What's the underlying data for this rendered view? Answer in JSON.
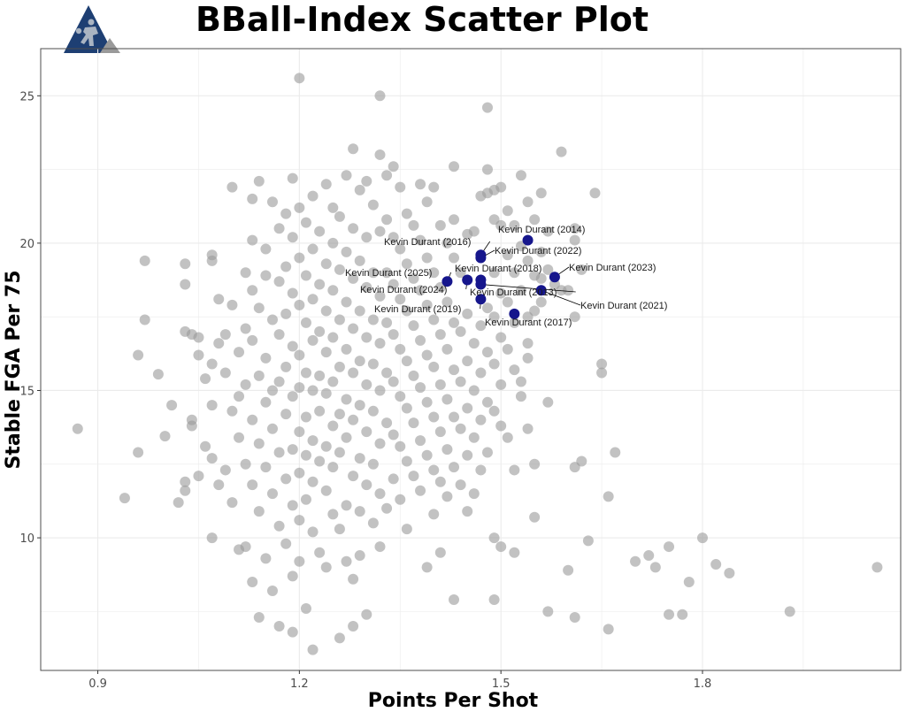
{
  "chart_data": {
    "type": "scatter",
    "title": "BBall-Index Scatter Plot",
    "xlabel": "Points Per Shot",
    "ylabel": "Stable FGA Per 75",
    "xlim": [
      0.815,
      2.095
    ],
    "ylim": [
      5.5,
      26.6
    ],
    "xticks": [
      0.9,
      1.2,
      1.5,
      1.8
    ],
    "yticks": [
      10,
      15,
      20,
      25
    ],
    "grid": true,
    "legend": "none",
    "colors": {
      "background": "#999999",
      "highlight": "#16168c",
      "grid": "#ebebeb",
      "panel_border": "#4d4d4d",
      "logo_dark": "#1e3f73",
      "logo_grey": "#9a9a9a"
    },
    "logo": {
      "name": "bball-index-logo"
    },
    "highlight": [
      {
        "label": "Kevin Durant (2014)",
        "x": 1.54,
        "y": 20.1
      },
      {
        "label": "Kevin Durant (2016)",
        "x": 1.47,
        "y": 19.6
      },
      {
        "label": "Kevin Durant (2022)",
        "x": 1.47,
        "y": 19.5
      },
      {
        "label": "Kevin Durant (2023)",
        "x": 1.58,
        "y": 18.85
      },
      {
        "label": "Kevin Durant (2018)",
        "x": 1.47,
        "y": 18.75
      },
      {
        "label": "Kevin Durant (2025)",
        "x": 1.42,
        "y": 18.7
      },
      {
        "label": "Kevin Durant (2024)",
        "x": 1.45,
        "y": 18.75
      },
      {
        "label": "Kevin Durant (2013)",
        "x": 1.47,
        "y": 18.6
      },
      {
        "label": "Kevin Durant (2021)",
        "x": 1.56,
        "y": 18.4
      },
      {
        "label": "Kevin Durant (2019)",
        "x": 1.47,
        "y": 18.1
      },
      {
        "label": "Kevin Durant (2017)",
        "x": 1.52,
        "y": 17.6
      }
    ],
    "background_points": [
      [
        0.87,
        13.7
      ],
      [
        0.94,
        11.35
      ],
      [
        0.96,
        16.2
      ],
      [
        0.96,
        12.9
      ],
      [
        0.97,
        19.4
      ],
      [
        0.97,
        17.4
      ],
      [
        0.99,
        15.55
      ],
      [
        1.0,
        13.45
      ],
      [
        1.01,
        14.5
      ],
      [
        1.02,
        11.2
      ],
      [
        1.03,
        19.3
      ],
      [
        1.03,
        18.6
      ],
      [
        1.03,
        17.0
      ],
      [
        1.03,
        11.6
      ],
      [
        1.03,
        11.9
      ],
      [
        1.04,
        16.9
      ],
      [
        1.04,
        14.0
      ],
      [
        1.04,
        13.8
      ],
      [
        1.05,
        16.8
      ],
      [
        1.05,
        16.2
      ],
      [
        1.05,
        12.1
      ],
      [
        1.06,
        15.4
      ],
      [
        1.06,
        13.1
      ],
      [
        1.07,
        19.6
      ],
      [
        1.07,
        19.4
      ],
      [
        1.07,
        15.9
      ],
      [
        1.07,
        14.5
      ],
      [
        1.07,
        12.7
      ],
      [
        1.07,
        10.0
      ],
      [
        1.08,
        18.1
      ],
      [
        1.08,
        16.6
      ],
      [
        1.08,
        11.8
      ],
      [
        1.09,
        16.9
      ],
      [
        1.09,
        15.6
      ],
      [
        1.09,
        12.3
      ],
      [
        1.1,
        21.9
      ],
      [
        1.1,
        17.9
      ],
      [
        1.1,
        14.3
      ],
      [
        1.1,
        11.2
      ],
      [
        1.11,
        16.3
      ],
      [
        1.11,
        14.8
      ],
      [
        1.11,
        13.4
      ],
      [
        1.11,
        9.6
      ],
      [
        1.12,
        19.0
      ],
      [
        1.12,
        17.1
      ],
      [
        1.12,
        15.2
      ],
      [
        1.12,
        12.5
      ],
      [
        1.12,
        9.7
      ],
      [
        1.13,
        21.5
      ],
      [
        1.13,
        20.1
      ],
      [
        1.13,
        18.4
      ],
      [
        1.13,
        16.7
      ],
      [
        1.13,
        14.0
      ],
      [
        1.13,
        11.8
      ],
      [
        1.13,
        8.5
      ],
      [
        1.14,
        22.1
      ],
      [
        1.14,
        17.8
      ],
      [
        1.14,
        15.5
      ],
      [
        1.14,
        13.2
      ],
      [
        1.14,
        10.9
      ],
      [
        1.14,
        7.3
      ],
      [
        1.15,
        19.8
      ],
      [
        1.15,
        18.9
      ],
      [
        1.15,
        16.1
      ],
      [
        1.15,
        14.6
      ],
      [
        1.15,
        12.4
      ],
      [
        1.15,
        9.3
      ],
      [
        1.16,
        21.4
      ],
      [
        1.16,
        17.4
      ],
      [
        1.16,
        15.0
      ],
      [
        1.16,
        13.7
      ],
      [
        1.16,
        11.5
      ],
      [
        1.16,
        8.2
      ],
      [
        1.17,
        20.5
      ],
      [
        1.17,
        18.7
      ],
      [
        1.17,
        16.9
      ],
      [
        1.17,
        15.3
      ],
      [
        1.17,
        12.9
      ],
      [
        1.17,
        10.4
      ],
      [
        1.17,
        7.0
      ],
      [
        1.18,
        21.0
      ],
      [
        1.18,
        19.2
      ],
      [
        1.18,
        17.6
      ],
      [
        1.18,
        15.8
      ],
      [
        1.18,
        14.2
      ],
      [
        1.18,
        12.0
      ],
      [
        1.18,
        9.8
      ],
      [
        1.19,
        22.2
      ],
      [
        1.19,
        20.2
      ],
      [
        1.19,
        18.3
      ],
      [
        1.19,
        16.5
      ],
      [
        1.19,
        14.8
      ],
      [
        1.19,
        13.0
      ],
      [
        1.19,
        11.1
      ],
      [
        1.19,
        8.7
      ],
      [
        1.19,
        6.8
      ],
      [
        1.2,
        25.6
      ],
      [
        1.2,
        21.2
      ],
      [
        1.2,
        19.5
      ],
      [
        1.2,
        17.9
      ],
      [
        1.2,
        16.2
      ],
      [
        1.2,
        15.1
      ],
      [
        1.2,
        13.6
      ],
      [
        1.2,
        12.2
      ],
      [
        1.2,
        10.6
      ],
      [
        1.2,
        9.2
      ],
      [
        1.21,
        20.7
      ],
      [
        1.21,
        18.9
      ],
      [
        1.21,
        17.3
      ],
      [
        1.21,
        15.6
      ],
      [
        1.21,
        14.1
      ],
      [
        1.21,
        12.8
      ],
      [
        1.21,
        11.3
      ],
      [
        1.21,
        7.6
      ],
      [
        1.22,
        21.6
      ],
      [
        1.22,
        19.8
      ],
      [
        1.22,
        18.1
      ],
      [
        1.22,
        16.7
      ],
      [
        1.22,
        15.0
      ],
      [
        1.22,
        13.3
      ],
      [
        1.22,
        11.9
      ],
      [
        1.22,
        10.2
      ],
      [
        1.22,
        6.2
      ],
      [
        1.23,
        20.4
      ],
      [
        1.23,
        18.6
      ],
      [
        1.23,
        17.0
      ],
      [
        1.23,
        15.5
      ],
      [
        1.23,
        14.3
      ],
      [
        1.23,
        12.6
      ],
      [
        1.23,
        9.5
      ],
      [
        1.24,
        22.0
      ],
      [
        1.24,
        19.3
      ],
      [
        1.24,
        17.7
      ],
      [
        1.24,
        16.3
      ],
      [
        1.24,
        14.9
      ],
      [
        1.24,
        13.1
      ],
      [
        1.24,
        11.6
      ],
      [
        1.24,
        9.0
      ],
      [
        1.25,
        21.2
      ],
      [
        1.25,
        20.0
      ],
      [
        1.25,
        18.4
      ],
      [
        1.25,
        16.8
      ],
      [
        1.25,
        15.3
      ],
      [
        1.25,
        13.8
      ],
      [
        1.25,
        12.4
      ],
      [
        1.25,
        10.8
      ],
      [
        1.26,
        20.9
      ],
      [
        1.26,
        19.1
      ],
      [
        1.26,
        17.4
      ],
      [
        1.26,
        15.8
      ],
      [
        1.26,
        14.2
      ],
      [
        1.26,
        12.9
      ],
      [
        1.26,
        10.3
      ],
      [
        1.26,
        6.6
      ],
      [
        1.27,
        22.3
      ],
      [
        1.27,
        19.7
      ],
      [
        1.27,
        18.0
      ],
      [
        1.27,
        16.4
      ],
      [
        1.27,
        14.7
      ],
      [
        1.27,
        13.4
      ],
      [
        1.27,
        11.1
      ],
      [
        1.27,
        9.2
      ],
      [
        1.28,
        23.2
      ],
      [
        1.28,
        20.5
      ],
      [
        1.28,
        18.8
      ],
      [
        1.28,
        17.1
      ],
      [
        1.28,
        15.6
      ],
      [
        1.28,
        14.0
      ],
      [
        1.28,
        12.1
      ],
      [
        1.28,
        8.6
      ],
      [
        1.28,
        7.0
      ],
      [
        1.29,
        21.8
      ],
      [
        1.29,
        19.4
      ],
      [
        1.29,
        17.7
      ],
      [
        1.29,
        16.0
      ],
      [
        1.29,
        14.5
      ],
      [
        1.29,
        12.7
      ],
      [
        1.29,
        10.9
      ],
      [
        1.29,
        9.4
      ],
      [
        1.3,
        22.1
      ],
      [
        1.3,
        20.2
      ],
      [
        1.3,
        18.5
      ],
      [
        1.3,
        16.8
      ],
      [
        1.3,
        15.2
      ],
      [
        1.3,
        13.6
      ],
      [
        1.3,
        11.8
      ],
      [
        1.3,
        7.4
      ],
      [
        1.31,
        21.3
      ],
      [
        1.31,
        19.0
      ],
      [
        1.31,
        17.4
      ],
      [
        1.31,
        15.9
      ],
      [
        1.31,
        14.3
      ],
      [
        1.31,
        12.5
      ],
      [
        1.31,
        10.5
      ],
      [
        1.32,
        25.0
      ],
      [
        1.32,
        23.0
      ],
      [
        1.32,
        20.4
      ],
      [
        1.32,
        18.2
      ],
      [
        1.32,
        16.6
      ],
      [
        1.32,
        15.0
      ],
      [
        1.32,
        13.2
      ],
      [
        1.32,
        11.5
      ],
      [
        1.32,
        9.7
      ],
      [
        1.33,
        22.3
      ],
      [
        1.33,
        20.8
      ],
      [
        1.33,
        19.0
      ],
      [
        1.33,
        17.3
      ],
      [
        1.33,
        15.6
      ],
      [
        1.33,
        13.9
      ],
      [
        1.33,
        11.0
      ],
      [
        1.34,
        22.6
      ],
      [
        1.34,
        20.2
      ],
      [
        1.34,
        18.6
      ],
      [
        1.34,
        16.9
      ],
      [
        1.34,
        15.3
      ],
      [
        1.34,
        13.5
      ],
      [
        1.34,
        12.0
      ],
      [
        1.35,
        21.9
      ],
      [
        1.35,
        19.8
      ],
      [
        1.35,
        18.1
      ],
      [
        1.35,
        16.4
      ],
      [
        1.35,
        14.8
      ],
      [
        1.35,
        13.1
      ],
      [
        1.35,
        11.3
      ],
      [
        1.36,
        21.0
      ],
      [
        1.36,
        19.3
      ],
      [
        1.36,
        17.7
      ],
      [
        1.36,
        16.0
      ],
      [
        1.36,
        14.4
      ],
      [
        1.36,
        12.6
      ],
      [
        1.36,
        10.3
      ],
      [
        1.37,
        20.6
      ],
      [
        1.37,
        18.8
      ],
      [
        1.37,
        17.2
      ],
      [
        1.37,
        15.5
      ],
      [
        1.37,
        13.9
      ],
      [
        1.37,
        12.1
      ],
      [
        1.38,
        22.0
      ],
      [
        1.38,
        20.1
      ],
      [
        1.38,
        18.4
      ],
      [
        1.38,
        16.7
      ],
      [
        1.38,
        15.1
      ],
      [
        1.38,
        13.3
      ],
      [
        1.38,
        11.6
      ],
      [
        1.39,
        21.4
      ],
      [
        1.39,
        19.5
      ],
      [
        1.39,
        17.9
      ],
      [
        1.39,
        16.2
      ],
      [
        1.39,
        14.6
      ],
      [
        1.39,
        12.8
      ],
      [
        1.39,
        9.0
      ],
      [
        1.4,
        21.9
      ],
      [
        1.4,
        19.0
      ],
      [
        1.4,
        17.4
      ],
      [
        1.4,
        15.8
      ],
      [
        1.4,
        14.1
      ],
      [
        1.4,
        12.3
      ],
      [
        1.4,
        10.8
      ],
      [
        1.41,
        20.6
      ],
      [
        1.41,
        18.5
      ],
      [
        1.41,
        16.9
      ],
      [
        1.41,
        15.2
      ],
      [
        1.41,
        13.6
      ],
      [
        1.41,
        11.9
      ],
      [
        1.41,
        9.5
      ],
      [
        1.42,
        20.0
      ],
      [
        1.42,
        18.0
      ],
      [
        1.42,
        16.4
      ],
      [
        1.42,
        14.7
      ],
      [
        1.42,
        13.0
      ],
      [
        1.42,
        11.4
      ],
      [
        1.43,
        22.6
      ],
      [
        1.43,
        20.8
      ],
      [
        1.43,
        19.5
      ],
      [
        1.43,
        17.3
      ],
      [
        1.43,
        15.7
      ],
      [
        1.43,
        14.1
      ],
      [
        1.43,
        12.4
      ],
      [
        1.43,
        7.9
      ],
      [
        1.44,
        19.0
      ],
      [
        1.44,
        17.0
      ],
      [
        1.44,
        15.3
      ],
      [
        1.44,
        13.7
      ],
      [
        1.44,
        11.8
      ],
      [
        1.45,
        20.3
      ],
      [
        1.45,
        17.6
      ],
      [
        1.45,
        16.0
      ],
      [
        1.45,
        14.4
      ],
      [
        1.45,
        12.8
      ],
      [
        1.45,
        10.9
      ],
      [
        1.46,
        20.4
      ],
      [
        1.46,
        16.6
      ],
      [
        1.46,
        15.0
      ],
      [
        1.46,
        13.4
      ],
      [
        1.46,
        11.5
      ],
      [
        1.47,
        21.6
      ],
      [
        1.47,
        17.2
      ],
      [
        1.47,
        15.6
      ],
      [
        1.47,
        14.0
      ],
      [
        1.47,
        12.3
      ],
      [
        1.48,
        24.6
      ],
      [
        1.48,
        22.5
      ],
      [
        1.48,
        21.7
      ],
      [
        1.48,
        17.8
      ],
      [
        1.48,
        16.3
      ],
      [
        1.48,
        14.6
      ],
      [
        1.48,
        12.9
      ],
      [
        1.49,
        21.8
      ],
      [
        1.49,
        20.8
      ],
      [
        1.49,
        19.0
      ],
      [
        1.49,
        17.5
      ],
      [
        1.49,
        15.9
      ],
      [
        1.49,
        14.3
      ],
      [
        1.49,
        10.0
      ],
      [
        1.49,
        7.9
      ],
      [
        1.5,
        21.9
      ],
      [
        1.5,
        20.6
      ],
      [
        1.5,
        18.3
      ],
      [
        1.5,
        16.8
      ],
      [
        1.5,
        15.2
      ],
      [
        1.5,
        13.8
      ],
      [
        1.5,
        9.7
      ],
      [
        1.51,
        21.1
      ],
      [
        1.51,
        19.6
      ],
      [
        1.51,
        18.0
      ],
      [
        1.51,
        16.4
      ],
      [
        1.51,
        13.4
      ],
      [
        1.52,
        20.6
      ],
      [
        1.52,
        19.0
      ],
      [
        1.52,
        17.3
      ],
      [
        1.52,
        15.7
      ],
      [
        1.52,
        12.3
      ],
      [
        1.52,
        9.5
      ],
      [
        1.53,
        22.3
      ],
      [
        1.53,
        19.9
      ],
      [
        1.53,
        18.4
      ],
      [
        1.53,
        15.3
      ],
      [
        1.53,
        14.8
      ],
      [
        1.54,
        21.4
      ],
      [
        1.54,
        19.4
      ],
      [
        1.54,
        17.5
      ],
      [
        1.54,
        16.6
      ],
      [
        1.54,
        16.1
      ],
      [
        1.54,
        13.7
      ],
      [
        1.55,
        20.8
      ],
      [
        1.55,
        18.9
      ],
      [
        1.55,
        17.7
      ],
      [
        1.55,
        12.5
      ],
      [
        1.55,
        10.7
      ],
      [
        1.56,
        21.7
      ],
      [
        1.56,
        19.7
      ],
      [
        1.56,
        18.8
      ],
      [
        1.56,
        18.0
      ],
      [
        1.57,
        20.4
      ],
      [
        1.57,
        19.1
      ],
      [
        1.57,
        14.6
      ],
      [
        1.57,
        7.5
      ],
      [
        1.58,
        18.6
      ],
      [
        1.59,
        23.1
      ],
      [
        1.59,
        18.4
      ],
      [
        1.6,
        18.4
      ],
      [
        1.6,
        8.9
      ],
      [
        1.61,
        20.5
      ],
      [
        1.61,
        20.1
      ],
      [
        1.61,
        17.5
      ],
      [
        1.61,
        12.4
      ],
      [
        1.61,
        7.3
      ],
      [
        1.62,
        19.1
      ],
      [
        1.62,
        12.6
      ],
      [
        1.63,
        9.9
      ],
      [
        1.64,
        21.7
      ],
      [
        1.65,
        15.9
      ],
      [
        1.65,
        15.6
      ],
      [
        1.66,
        11.4
      ],
      [
        1.66,
        6.9
      ],
      [
        1.67,
        12.9
      ],
      [
        1.7,
        9.2
      ],
      [
        1.72,
        9.4
      ],
      [
        1.73,
        9.0
      ],
      [
        1.75,
        9.7
      ],
      [
        1.75,
        7.4
      ],
      [
        1.77,
        7.4
      ],
      [
        1.78,
        8.5
      ],
      [
        1.8,
        10.0
      ],
      [
        1.82,
        9.1
      ],
      [
        1.84,
        8.8
      ],
      [
        1.93,
        7.5
      ],
      [
        2.06,
        9.0
      ]
    ]
  }
}
